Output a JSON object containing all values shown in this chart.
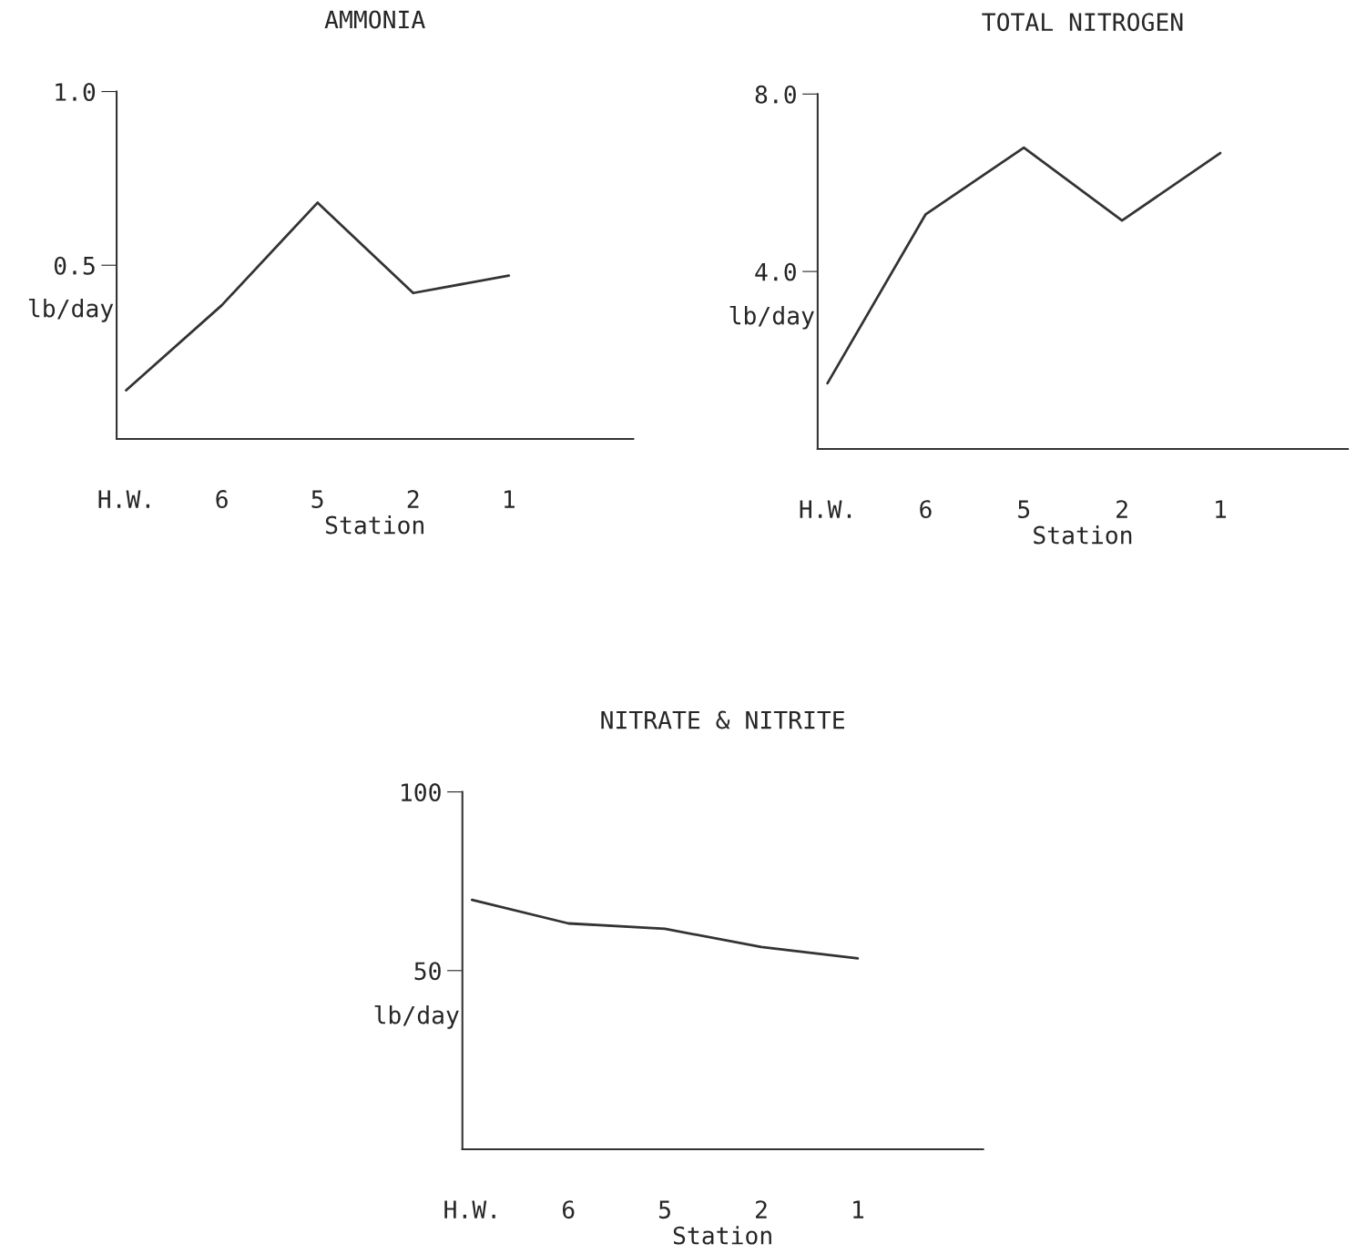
{
  "chart_data": [
    {
      "type": "line",
      "title": "AMMONIA",
      "xlabel": "Station",
      "ylabel": "lb/day",
      "categories": [
        "H.W.",
        "6",
        "5",
        "2",
        "1"
      ],
      "series": [
        {
          "color": "#333333",
          "values": [
            0.14,
            0.385,
            0.68,
            0.42,
            0.47
          ]
        }
      ],
      "ylim": [
        0,
        1.0
      ],
      "yticks": [
        0.5,
        {
          "value": 1.0,
          "label": "1.0"
        }
      ],
      "grid": false,
      "legend": false,
      "marker": "none",
      "line_style": "solid"
    },
    {
      "type": "line",
      "title": "TOTAL NITROGEN",
      "xlabel": "Station",
      "ylabel": "lb/day",
      "categories": [
        "H.W.",
        "6",
        "5",
        "2",
        "1"
      ],
      "series": [
        {
          "color": "#333333",
          "values": [
            1.48,
            5.29,
            6.79,
            5.15,
            6.67
          ]
        }
      ],
      "ylim": [
        0,
        8.0
      ],
      "yticks": [
        {
          "value": 4.0,
          "label": "4.0"
        },
        {
          "value": 8.0,
          "label": "8.0"
        }
      ],
      "grid": false,
      "legend": false,
      "marker": "none",
      "line_style": "solid"
    },
    {
      "type": "line",
      "title": "NITRATE & NITRITE",
      "xlabel": "Station",
      "ylabel": "lb/day",
      "categories": [
        "H.W.",
        "6",
        "5",
        "2",
        "1"
      ],
      "series": [
        {
          "color": "#333333",
          "values": [
            69.8,
            63.2,
            61.7,
            56.6,
            53.4
          ]
        }
      ],
      "ylim": [
        0,
        100
      ],
      "yticks": [
        50,
        100
      ],
      "grid": false,
      "legend": false,
      "marker": "none",
      "line_style": "solid"
    }
  ]
}
